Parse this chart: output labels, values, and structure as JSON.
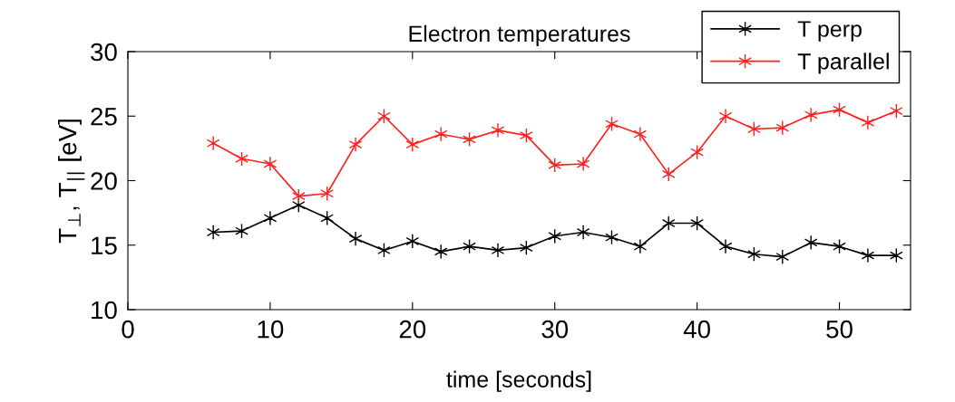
{
  "chart_data": {
    "type": "line",
    "title": "Electron temperatures",
    "xlabel": "time [seconds]",
    "ylabel": "T$_{⊥}$, T$_{||}$ [eV]",
    "x": [
      6,
      8,
      10,
      12,
      14,
      16,
      18,
      20,
      22,
      24,
      26,
      28,
      30,
      32,
      34,
      36,
      38,
      40,
      42,
      44,
      46,
      48,
      50,
      52,
      54
    ],
    "series": [
      {
        "name": "T perp",
        "color": "#000000",
        "values": [
          16.0,
          16.1,
          17.1,
          18.1,
          17.1,
          15.5,
          14.6,
          15.3,
          14.5,
          14.9,
          14.6,
          14.8,
          15.7,
          16.0,
          15.6,
          14.9,
          16.7,
          16.7,
          14.9,
          14.3,
          14.1,
          15.2,
          14.9,
          14.2,
          14.2
        ]
      },
      {
        "name": "T parallel",
        "color": "#ff2020",
        "values": [
          22.9,
          21.7,
          21.3,
          18.8,
          19.0,
          22.8,
          25.0,
          22.8,
          23.6,
          23.2,
          23.9,
          23.5,
          21.2,
          21.3,
          24.4,
          23.6,
          20.5,
          22.2,
          25.0,
          24.0,
          24.1,
          25.1,
          25.5,
          24.5,
          25.4
        ]
      }
    ],
    "xlim": [
      0,
      55
    ],
    "xticks": [
      0,
      10,
      20,
      30,
      40,
      50
    ],
    "ylim": [
      10,
      30
    ],
    "yticks": [
      10,
      15,
      20,
      25,
      30
    ],
    "grid": false,
    "legend": "top right",
    "marker": "cross",
    "line_style": "solid"
  }
}
